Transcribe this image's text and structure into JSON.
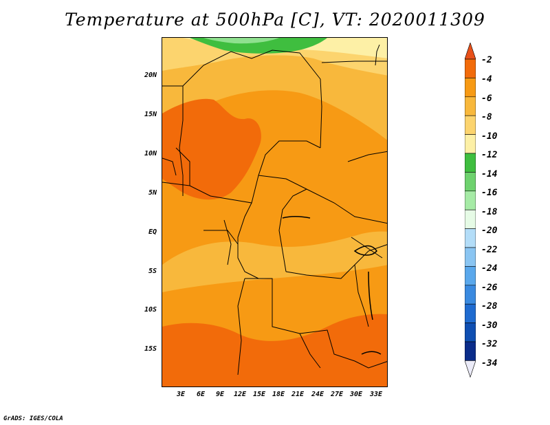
{
  "title": "Temperature at 500hPa [C], VT: 2020011309",
  "credit": "GrADS: IGES/COLA",
  "map": {
    "lat_labels": [
      "20N",
      "15N",
      "10N",
      "5N",
      "EQ",
      "5S",
      "10S",
      "15S"
    ],
    "lon_labels": [
      "3E",
      "6E",
      "9E",
      "12E",
      "15E",
      "18E",
      "21E",
      "24E",
      "27E",
      "30E",
      "33E"
    ],
    "palette": {
      "deep_orange": "#f26b0a",
      "orange": "#f79a14",
      "light_orange": "#f8b83c",
      "yellow_orange": "#fcd46e",
      "pale_yellow": "#fdf0a6",
      "green": "#3fbe3f",
      "light_green": "#8fe18f"
    }
  },
  "colorbar": {
    "labels": [
      "-2",
      "-4",
      "-6",
      "-8",
      "-10",
      "-12",
      "-14",
      "-16",
      "-18",
      "-20",
      "-22",
      "-24",
      "-26",
      "-28",
      "-30",
      "-32",
      "-34"
    ],
    "colors": [
      "#e8501a",
      "#f26b0a",
      "#f79a14",
      "#f8b83c",
      "#fcd46e",
      "#fdf0a6",
      "#3fbe3f",
      "#6ed26e",
      "#a6eba6",
      "#e6fbe6",
      "#b3ddf8",
      "#8ac5f2",
      "#5aa8ec",
      "#3a8ae0",
      "#1f6bd0",
      "#0f4fb2",
      "#0a2c8a",
      "#ebebf8"
    ]
  }
}
